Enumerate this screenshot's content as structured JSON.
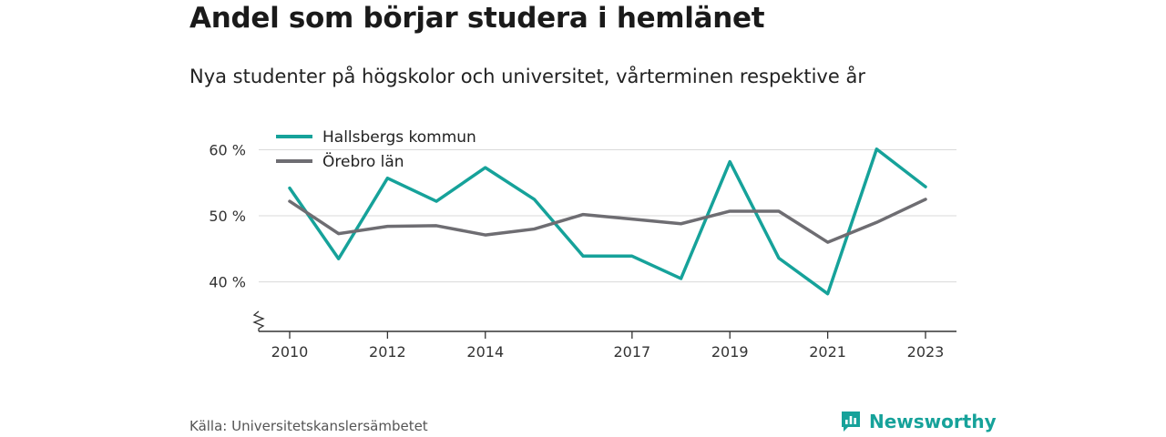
{
  "title": "Andel som börjar studera i hemlänet",
  "subtitle": "Nya studenter på högskolor och universitet, vårterminen respektive år",
  "source": "Källa: Universitetskanslersämbetet",
  "brand": {
    "name": "Newsworthy",
    "icon": "bar-chart-logo-icon",
    "color": "#16a29a"
  },
  "chart_data": {
    "type": "line",
    "title": "",
    "xlabel": "",
    "ylabel": "",
    "x": [
      2010,
      2011,
      2012,
      2013,
      2014,
      2015,
      2016,
      2017,
      2018,
      2019,
      2020,
      2021,
      2022,
      2023
    ],
    "x_tick_values": [
      2010,
      2012,
      2014,
      2017,
      2019,
      2021,
      2023
    ],
    "x_tick_labels": [
      "2010",
      "2012",
      "2014",
      "2017",
      "2019",
      "2021",
      "2023"
    ],
    "y_tick_values": [
      40,
      50,
      60
    ],
    "y_tick_labels": [
      "40 %",
      "50 %",
      "60 %"
    ],
    "ylim": [
      32.5,
      62
    ],
    "y_axis_break": true,
    "grid": true,
    "legend_position": "top-left",
    "series": [
      {
        "name": "Hallsbergs kommun",
        "color": "#16a29a",
        "values": [
          54.2,
          43.5,
          55.7,
          52.2,
          57.3,
          52.5,
          43.9,
          43.9,
          40.5,
          58.2,
          43.6,
          38.2,
          60.1,
          54.4
        ]
      },
      {
        "name": "Örebro län",
        "color": "#6e6d72",
        "values": [
          52.2,
          47.3,
          48.4,
          48.5,
          47.1,
          48.0,
          50.2,
          49.5,
          48.8,
          50.7,
          50.7,
          46.0,
          49.0,
          52.5
        ]
      }
    ]
  }
}
